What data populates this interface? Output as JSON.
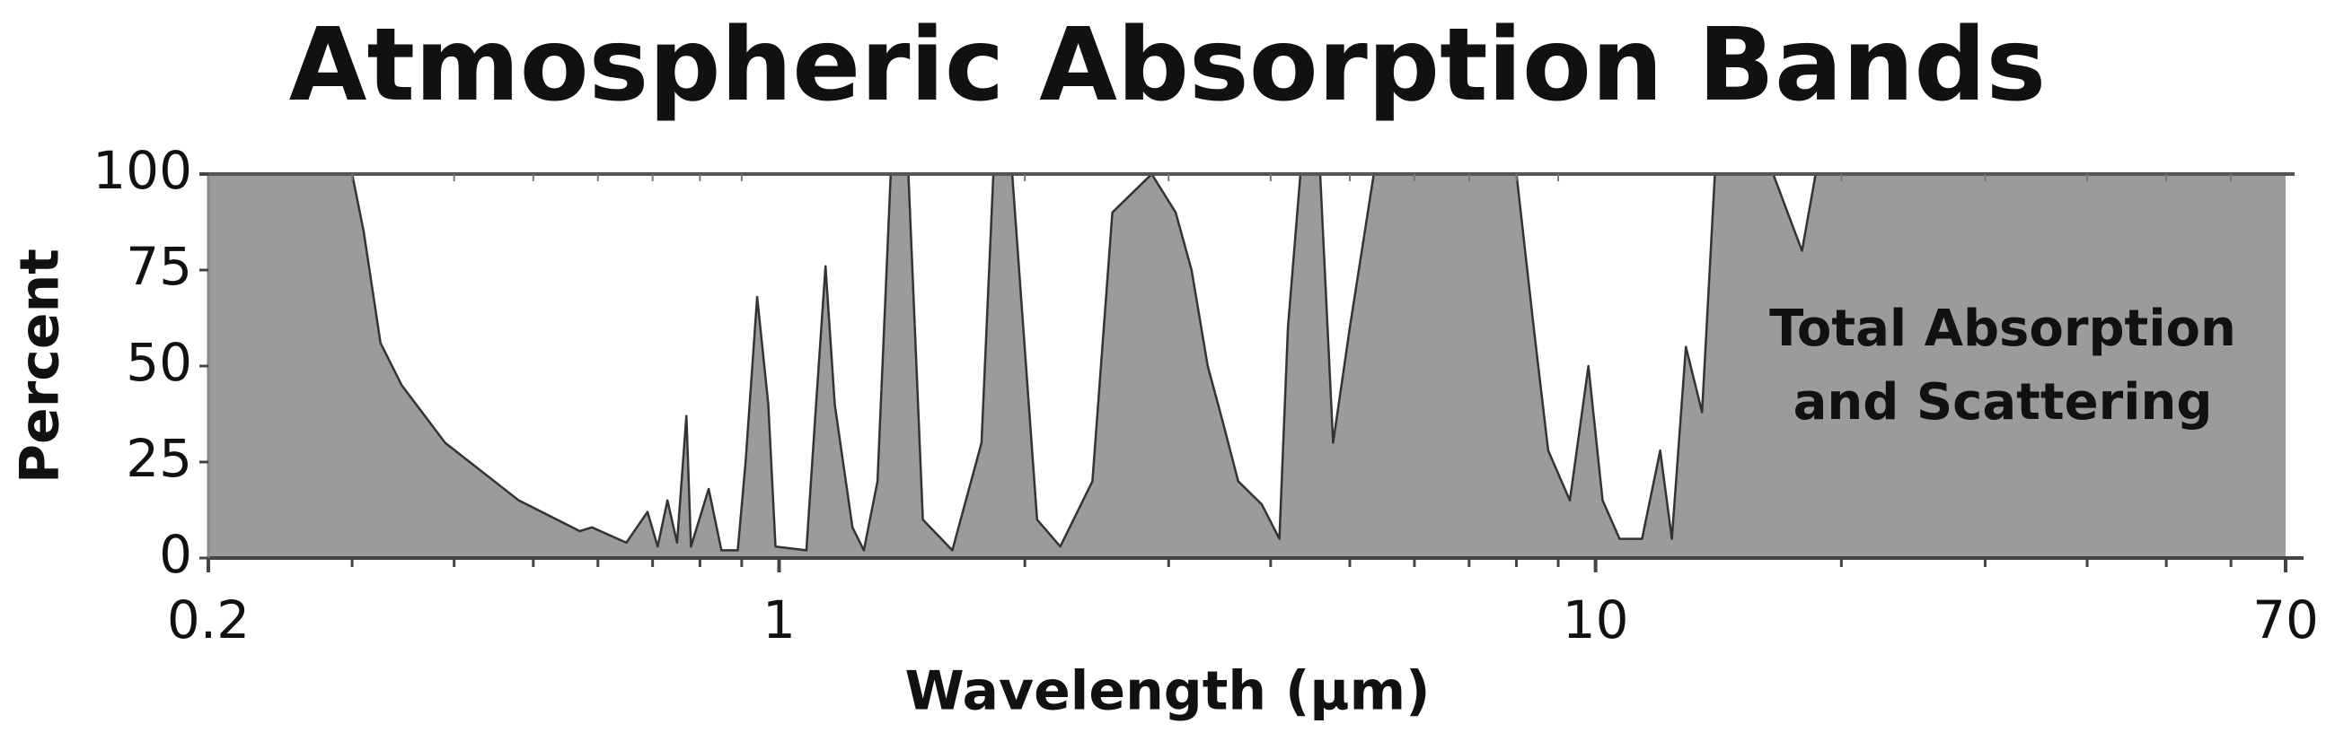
{
  "chart_data": {
    "type": "area",
    "title": "Atmospheric Absorption Bands",
    "xlabel": "Wavelength (µm)",
    "ylabel": "Percent",
    "annotation": [
      "Total Absorption",
      "and Scattering"
    ],
    "xscale": "log",
    "xlim": [
      0.2,
      70
    ],
    "ylim": [
      0,
      100
    ],
    "xticks": [
      0.2,
      1,
      10,
      70
    ],
    "xminorticks": [
      0.3,
      0.4,
      0.5,
      0.6,
      0.7,
      0.8,
      0.9,
      2,
      3,
      4,
      5,
      6,
      7,
      8,
      9,
      20,
      30,
      40,
      50,
      60
    ],
    "yticks": [
      0,
      25,
      50,
      75,
      100
    ],
    "fill": "#9b9b9b",
    "line_color": "#333333",
    "x": [
      0.2,
      0.3,
      0.31,
      0.325,
      0.345,
      0.39,
      0.48,
      0.57,
      0.59,
      0.65,
      0.69,
      0.71,
      0.73,
      0.75,
      0.77,
      0.78,
      0.82,
      0.85,
      0.89,
      0.91,
      0.94,
      0.97,
      0.99,
      1.08,
      1.11,
      1.14,
      1.17,
      1.23,
      1.27,
      1.32,
      1.37,
      1.44,
      1.5,
      1.63,
      1.77,
      1.83,
      1.93,
      2.07,
      2.21,
      2.42,
      2.56,
      2.86,
      3.06,
      3.2,
      3.35,
      3.5,
      3.65,
      3.9,
      4.1,
      4.2,
      4.35,
      4.6,
      4.77,
      5.0,
      5.35,
      8.0,
      8.4,
      8.75,
      9.3,
      9.8,
      10.2,
      10.7,
      11.4,
      12.0,
      12.4,
      12.9,
      13.5,
      14.0,
      16.5,
      17.9,
      18.6,
      70
    ],
    "values": [
      100,
      100,
      85,
      56,
      45,
      30,
      15,
      7,
      8,
      4,
      12,
      3,
      15,
      4,
      37,
      3,
      18,
      2,
      2,
      25,
      68,
      40,
      3,
      2,
      40,
      76,
      40,
      8,
      2,
      20,
      100,
      100,
      10,
      2,
      30,
      100,
      100,
      10,
      3,
      20,
      90,
      100,
      90,
      75,
      50,
      35,
      20,
      14,
      5,
      60,
      100,
      100,
      30,
      60,
      100,
      100,
      60,
      28,
      15,
      50,
      15,
      5,
      5,
      28,
      5,
      55,
      38,
      100,
      100,
      80,
      100,
      100
    ]
  }
}
